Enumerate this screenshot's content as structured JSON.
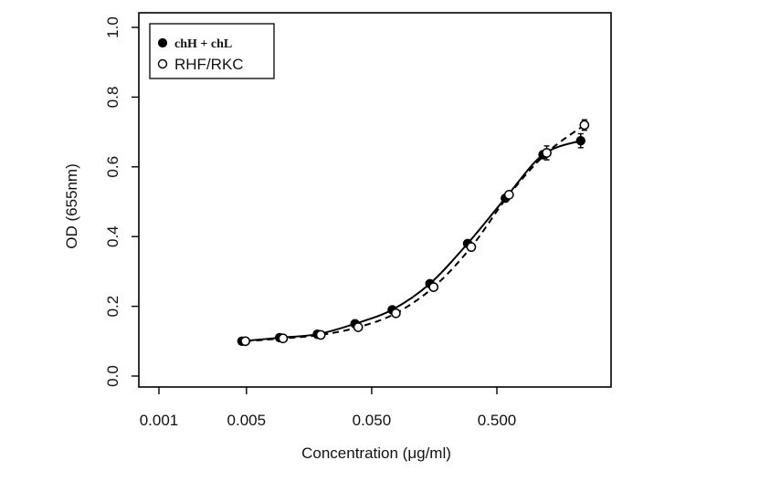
{
  "chart_data": {
    "type": "line",
    "xlabel": "Concentration (μg/ml)",
    "ylabel": "OD (655nm)",
    "xscale": "log",
    "xlim": [
      0.001,
      1.9
    ],
    "ylim": [
      0.0,
      1.0
    ],
    "xticks": [
      0.001,
      0.005,
      0.05,
      0.5
    ],
    "xtick_labels": [
      "0.001",
      "0.005",
      "0.050",
      "0.500"
    ],
    "yticks": [
      0.0,
      0.2,
      0.4,
      0.6,
      0.8,
      1.0
    ],
    "ytick_labels": [
      "0.0",
      "0.2",
      "0.4",
      "0.6",
      "0.8",
      "1.0"
    ],
    "legend_position": "top-left",
    "grid": false,
    "series": [
      {
        "name": "chH + chL",
        "marker": "filled-circle",
        "line": "solid",
        "x": [
          0.0046,
          0.0092,
          0.0184,
          0.0368,
          0.073,
          0.146,
          0.292,
          0.584,
          1.168,
          2.336
        ],
        "y": [
          0.1,
          0.11,
          0.12,
          0.15,
          0.19,
          0.265,
          0.38,
          0.51,
          0.635,
          0.675
        ],
        "err": [
          0.0,
          0.0,
          0.0,
          0.0,
          0.0,
          0.0,
          0.0,
          0.0,
          0.01,
          0.02
        ]
      },
      {
        "name": "RHF/RKC",
        "marker": "open-circle",
        "line": "dashed",
        "x": [
          0.0049,
          0.0098,
          0.0196,
          0.039,
          0.078,
          0.156,
          0.312,
          0.625,
          1.25,
          2.5
        ],
        "y": [
          0.1,
          0.108,
          0.118,
          0.14,
          0.18,
          0.255,
          0.37,
          0.52,
          0.64,
          0.72
        ],
        "err": [
          0.0,
          0.0,
          0.0,
          0.0,
          0.0,
          0.0,
          0.0,
          0.0,
          0.02,
          0.015
        ]
      }
    ]
  }
}
